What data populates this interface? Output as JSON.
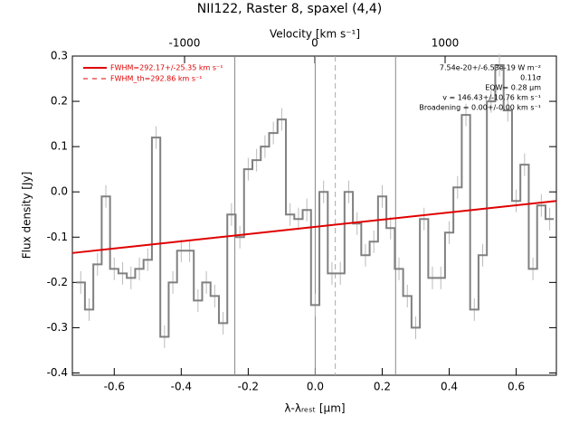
{
  "chart_data": {
    "type": "step",
    "title": "NII122, Raster 8, spaxel (4,4)",
    "xlabel": "λ-λᵣₑₛₜ [μm]",
    "ylabel": "Flux density [Jy]",
    "x2label": "Velocity [km s⁻¹]",
    "xlim": [
      -0.725,
      0.72
    ],
    "ylim": [
      -0.405,
      0.3
    ],
    "x2lim": [
      -1861,
      1854
    ],
    "xticks": [
      -0.6,
      -0.4,
      -0.2,
      {
        "value": 0,
        "label": "0.0"
      },
      0.2,
      0.4,
      0.6
    ],
    "yticks": [
      -0.4,
      -0.3,
      -0.2,
      -0.1,
      {
        "value": 0,
        "label": "0.0"
      },
      0.1,
      0.2,
      0.3
    ],
    "x2ticks": [
      -1000,
      0,
      1000
    ],
    "bin_width": 0.025,
    "x": [
      -0.7,
      -0.675,
      -0.65,
      -0.625,
      -0.6,
      -0.575,
      -0.55,
      -0.525,
      -0.5,
      -0.475,
      -0.45,
      -0.425,
      -0.4,
      -0.375,
      -0.35,
      -0.325,
      -0.3,
      -0.275,
      -0.25,
      -0.225,
      -0.2,
      -0.175,
      -0.15,
      -0.125,
      -0.1,
      -0.075,
      -0.05,
      -0.025,
      0,
      0.025,
      0.05,
      0.075,
      0.1,
      0.125,
      0.15,
      0.175,
      0.2,
      0.225,
      0.25,
      0.275,
      0.3,
      0.325,
      0.35,
      0.375,
      0.4,
      0.425,
      0.45,
      0.475,
      0.5,
      0.525,
      0.55,
      0.575,
      0.6,
      0.625,
      0.65,
      0.675,
      0.7
    ],
    "series": [
      {
        "name": "Flux density",
        "color": "#808080",
        "values": [
          -0.2,
          -0.26,
          -0.16,
          -0.01,
          -0.17,
          -0.18,
          -0.19,
          -0.17,
          -0.15,
          0.12,
          -0.32,
          -0.2,
          -0.13,
          -0.13,
          -0.24,
          -0.2,
          -0.23,
          -0.29,
          -0.05,
          -0.1,
          0.05,
          0.07,
          0.1,
          0.13,
          0.16,
          -0.05,
          -0.06,
          -0.04,
          -0.25,
          0.0,
          -0.18,
          -0.18,
          0.0,
          -0.07,
          -0.14,
          -0.11,
          -0.01,
          -0.08,
          -0.17,
          -0.23,
          -0.3,
          -0.06,
          -0.19,
          -0.19,
          -0.09,
          0.01,
          0.17,
          -0.26,
          -0.14,
          0.2,
          0.28,
          0.18,
          -0.02,
          0.06,
          -0.17,
          -0.03,
          -0.06
        ],
        "errors": [
          0.025,
          0.025,
          0.025,
          0.025,
          0.025,
          0.025,
          0.025,
          0.025,
          0.025,
          0.025,
          0.025,
          0.025,
          0.025,
          0.025,
          0.025,
          0.025,
          0.025,
          0.025,
          0.025,
          0.025,
          0.025,
          0.025,
          0.025,
          0.025,
          0.025,
          0.025,
          0.025,
          0.025,
          0.025,
          0.025,
          0.025,
          0.025,
          0.025,
          0.025,
          0.025,
          0.025,
          0.025,
          0.025,
          0.025,
          0.025,
          0.025,
          0.025,
          0.025,
          0.025,
          0.025,
          0.025,
          0.025,
          0.025,
          0.025,
          0.025,
          0.025,
          0.025,
          0.025,
          0.025,
          0.025,
          0.025,
          0.025
        ]
      }
    ],
    "fit": {
      "name": "FWHM=292.17+/-25.35 km s⁻¹",
      "color": "#e00000",
      "x": [
        -0.725,
        0.72
      ],
      "y": [
        -0.135,
        -0.02
      ]
    },
    "fit_th": {
      "name": "FWHM_th=292.86 km s⁻¹",
      "color": "#e00000"
    },
    "reference_lines": [
      -0.24,
      0,
      0.24
    ],
    "dashed_line": 0.06,
    "annotations": [
      "7.54e-20+/-6.53e-19 W m⁻²",
      "0.11σ",
      "EQW= 0.28 μm",
      "v = 146.43+/-10.76 km s⁻¹",
      "Broadening = 0.00+/-0.00 km s⁻¹"
    ]
  }
}
